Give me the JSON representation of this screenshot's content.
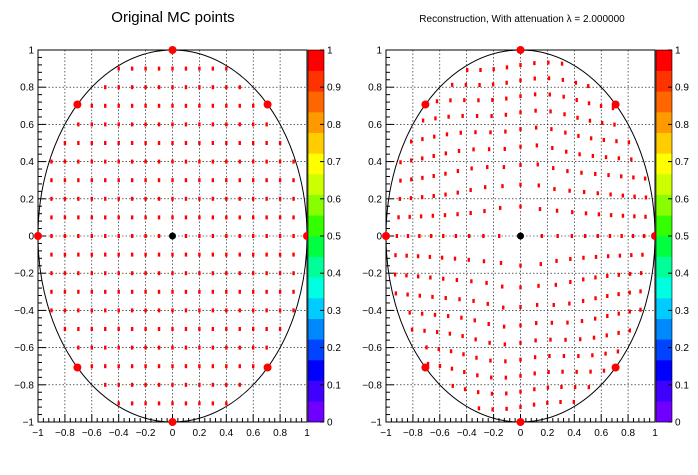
{
  "chart_data": [
    {
      "type": "scatter",
      "title": "Original MC points",
      "xlabel": "",
      "ylabel": "",
      "xlim": [
        -1,
        1
      ],
      "ylim": [
        -1,
        1
      ],
      "grid": true,
      "x_ticks": [
        "−1",
        "−0.8",
        "−0.6",
        "−0.4",
        "−0.2",
        "0",
        "0.2",
        "0.4",
        "0.6",
        "0.8",
        "1"
      ],
      "y_ticks": [
        "−1",
        "−0.8",
        "−0.6",
        "−0.4",
        "−0.2",
        "0",
        "0.2",
        "0.4",
        "0.6",
        "0.8",
        "1"
      ],
      "z_ticks": [
        "0",
        "0.1",
        "0.2",
        "0.3",
        "0.4",
        "0.5",
        "0.6",
        "0.7",
        "0.8",
        "0.9",
        "1"
      ],
      "zlim": [
        0,
        1
      ],
      "outline": "unit circle",
      "grid_step": 0.1,
      "grid_pattern": "regular",
      "large_markers": [
        {
          "x": 0,
          "y": 1
        },
        {
          "x": 0.707,
          "y": 0.707
        },
        {
          "x": 1,
          "y": 0
        },
        {
          "x": 0.707,
          "y": -0.707
        },
        {
          "x": 0,
          "y": -1
        },
        {
          "x": -0.707,
          "y": -0.707
        },
        {
          "x": -1,
          "y": 0
        },
        {
          "x": -0.707,
          "y": 0.707
        }
      ],
      "center_marker": {
        "x": 0,
        "y": 0
      }
    },
    {
      "type": "scatter",
      "title": "Reconstruction, With attenuation λ = 2.000000",
      "xlabel": "",
      "ylabel": "",
      "xlim": [
        -1,
        1
      ],
      "ylim": [
        -1,
        1
      ],
      "grid": true,
      "x_ticks": [
        "−1",
        "−0.8",
        "−0.6",
        "−0.4",
        "−0.2",
        "0",
        "0.2",
        "0.4",
        "0.6",
        "0.8",
        "1"
      ],
      "y_ticks": [
        "−1",
        "−0.8",
        "−0.6",
        "−0.4",
        "−0.2",
        "0",
        "0.2",
        "0.4",
        "0.6",
        "0.8",
        "1"
      ],
      "z_ticks": [
        "0",
        "0.1",
        "0.2",
        "0.3",
        "0.4",
        "0.5",
        "0.6",
        "0.7",
        "0.8",
        "0.9",
        "1"
      ],
      "zlim": [
        0,
        1
      ],
      "outline": "unit circle",
      "grid_step": 0.1,
      "grid_pattern": "radially distorted",
      "large_markers": [
        {
          "x": 0,
          "y": 1
        },
        {
          "x": 0.707,
          "y": 0.707
        },
        {
          "x": 1,
          "y": 0
        },
        {
          "x": 0.707,
          "y": -0.707
        },
        {
          "x": 0,
          "y": -1
        },
        {
          "x": -0.707,
          "y": -0.707
        },
        {
          "x": -1,
          "y": 0
        },
        {
          "x": -0.707,
          "y": 0.707
        }
      ],
      "center_marker": {
        "x": 0,
        "y": 0
      }
    }
  ],
  "colors": {
    "marker": "#ff0000",
    "center": "#000000",
    "palette": [
      "#6f00ff",
      "#3f00ff",
      "#0000ff",
      "#0044ff",
      "#0088ff",
      "#00ccff",
      "#00ffe0",
      "#00ff99",
      "#00ff40",
      "#33ff00",
      "#88ff00",
      "#ccff00",
      "#ffff00",
      "#ffcc00",
      "#ff9900",
      "#ff6600",
      "#ff3300",
      "#ff0000"
    ]
  }
}
